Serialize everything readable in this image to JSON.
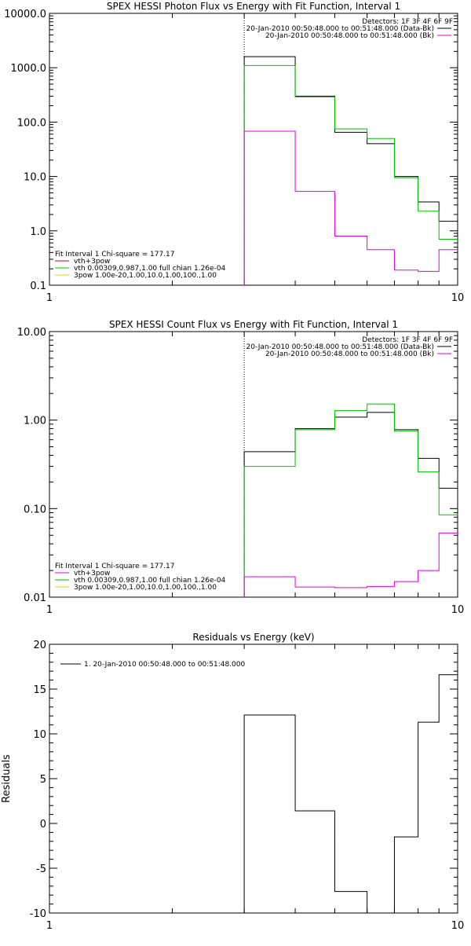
{
  "chart_data": [
    {
      "type": "line",
      "title": "SPEX HESSI Photon Flux vs Energy with Fit Function, Interval 1",
      "xscale": "log",
      "yscale": "log",
      "xlim": [
        1,
        10
      ],
      "ylim": [
        0.1,
        10000
      ],
      "x_ticks": [
        {
          "value": 1,
          "label": "1"
        },
        {
          "value": 10,
          "label": "10"
        }
      ],
      "y_ticks": [
        {
          "value": 0.1,
          "label": "0.1"
        },
        {
          "value": 1,
          "label": "1.0"
        },
        {
          "value": 10,
          "label": "10.0"
        },
        {
          "value": 100,
          "label": "100.0"
        },
        {
          "value": 1000,
          "label": "1000.0"
        },
        {
          "value": 10000,
          "label": "10000.0"
        }
      ],
      "vline_x": 3,
      "legend_top": [
        {
          "text": "Detectors: 1F 3F 4F 6F 9F",
          "color": ""
        },
        {
          "text": "20-Jan-2010 00:50:48.000 to 00:51:48.000 (Data-Bk)",
          "color": "#000000"
        },
        {
          "text": "20-Jan-2010 00:50:48.000 to 00:51:48.000 (Bk)",
          "color": "#e000e0"
        }
      ],
      "legend_bottom": [
        {
          "text": "Fit Interval 1    Chi-square = 177.17",
          "color": ""
        },
        {
          "text": "vth+3pow",
          "color": "#e00000"
        },
        {
          "text": "vth 0.00309,0.987,1.00  full chian 1.26e-04",
          "color": "#00c000"
        },
        {
          "text": "3pow 1.00e-20,1.00,10.0,1.00,100.,1.00",
          "color": "#d8d800"
        }
      ],
      "series": [
        {
          "color": "#000000",
          "edges": [
            3,
            4,
            5,
            6,
            7,
            8,
            9,
            10
          ],
          "values": [
            1600,
            300,
            65,
            40,
            10,
            3.4,
            1.5
          ]
        },
        {
          "color": "#00c000",
          "edges": [
            3,
            4,
            5,
            6,
            7,
            8,
            9,
            10
          ],
          "values": [
            1100,
            290,
            75,
            50,
            9.5,
            2.3,
            0.7
          ]
        },
        {
          "color": "#e000e0",
          "edges": [
            3,
            4,
            5,
            6,
            7,
            8,
            9,
            10
          ],
          "values": [
            68,
            5.3,
            0.8,
            0.45,
            0.19,
            0.18,
            0.45
          ]
        }
      ]
    },
    {
      "type": "line",
      "title": "SPEX HESSI Count Flux vs Energy with Fit Function, Interval 1",
      "xscale": "log",
      "yscale": "log",
      "xlim": [
        1,
        10
      ],
      "ylim": [
        0.01,
        10
      ],
      "x_ticks": [
        {
          "value": 1,
          "label": "1"
        },
        {
          "value": 10,
          "label": "10"
        }
      ],
      "y_ticks": [
        {
          "value": 0.01,
          "label": "0.01"
        },
        {
          "value": 0.1,
          "label": "0.10"
        },
        {
          "value": 1,
          "label": "1.00"
        },
        {
          "value": 10,
          "label": "10.00"
        }
      ],
      "vline_x": 3,
      "legend_top": [
        {
          "text": "Detectors: 1F 3F 4F 6F 9F",
          "color": ""
        },
        {
          "text": "20-Jan-2010 00:50:48.000 to 00:51:48.000 (Data-Bk)",
          "color": "#000000"
        },
        {
          "text": "20-Jan-2010 00:50:48.000 to 00:51:48.000 (Bk)",
          "color": "#e000e0"
        }
      ],
      "legend_bottom": [
        {
          "text": "Fit Interval 1    Chi-square = 177.17",
          "color": ""
        },
        {
          "text": "vth+3pow",
          "color": "#e000e0"
        },
        {
          "text": "vth 0.00309,0.987,1.00  full chian 1.26e-04",
          "color": "#00c000"
        },
        {
          "text": "3pow 1.00e-20,1.00,10.0,1.00,100.,1.00",
          "color": "#d8d800"
        }
      ],
      "series": [
        {
          "color": "#000000",
          "edges": [
            3,
            4,
            5,
            6,
            7,
            8,
            9,
            10
          ],
          "values": [
            0.44,
            0.8,
            1.08,
            1.22,
            0.78,
            0.37,
            0.17
          ]
        },
        {
          "color": "#00c000",
          "edges": [
            3,
            4,
            5,
            6,
            7,
            8,
            9,
            10
          ],
          "values": [
            0.3,
            0.78,
            1.28,
            1.52,
            0.75,
            0.26,
            0.085
          ]
        },
        {
          "color": "#e000e0",
          "edges": [
            3,
            4,
            5,
            6,
            7,
            8,
            9,
            10
          ],
          "values": [
            0.017,
            0.013,
            0.0128,
            0.0132,
            0.015,
            0.02,
            0.053
          ]
        }
      ]
    },
    {
      "type": "line",
      "title": "Residuals vs Energy (keV)",
      "ylabel": "Residuals",
      "xscale": "log",
      "yscale": "linear",
      "xlim": [
        1,
        10
      ],
      "ylim": [
        -10,
        20
      ],
      "x_ticks": [
        {
          "value": 1,
          "label": "1"
        },
        {
          "value": 10,
          "label": "10"
        }
      ],
      "y_ticks": [
        {
          "value": -10,
          "label": "-10"
        },
        {
          "value": -5,
          "label": "-5"
        },
        {
          "value": 0,
          "label": "0"
        },
        {
          "value": 5,
          "label": "5"
        },
        {
          "value": 10,
          "label": "10"
        },
        {
          "value": 15,
          "label": "15"
        },
        {
          "value": 20,
          "label": "20"
        }
      ],
      "legend_top_left": [
        {
          "text": "1. 20-Jan-2010 00:50:48.000 to 00:51:48.000",
          "color": "#000000"
        }
      ],
      "series": [
        {
          "color": "#000000",
          "edges": [
            3,
            4,
            5,
            6,
            7,
            8,
            9,
            10
          ],
          "values": [
            12.1,
            1.4,
            -7.6,
            -10.3,
            -1.5,
            11.3,
            16.6
          ]
        }
      ]
    }
  ]
}
